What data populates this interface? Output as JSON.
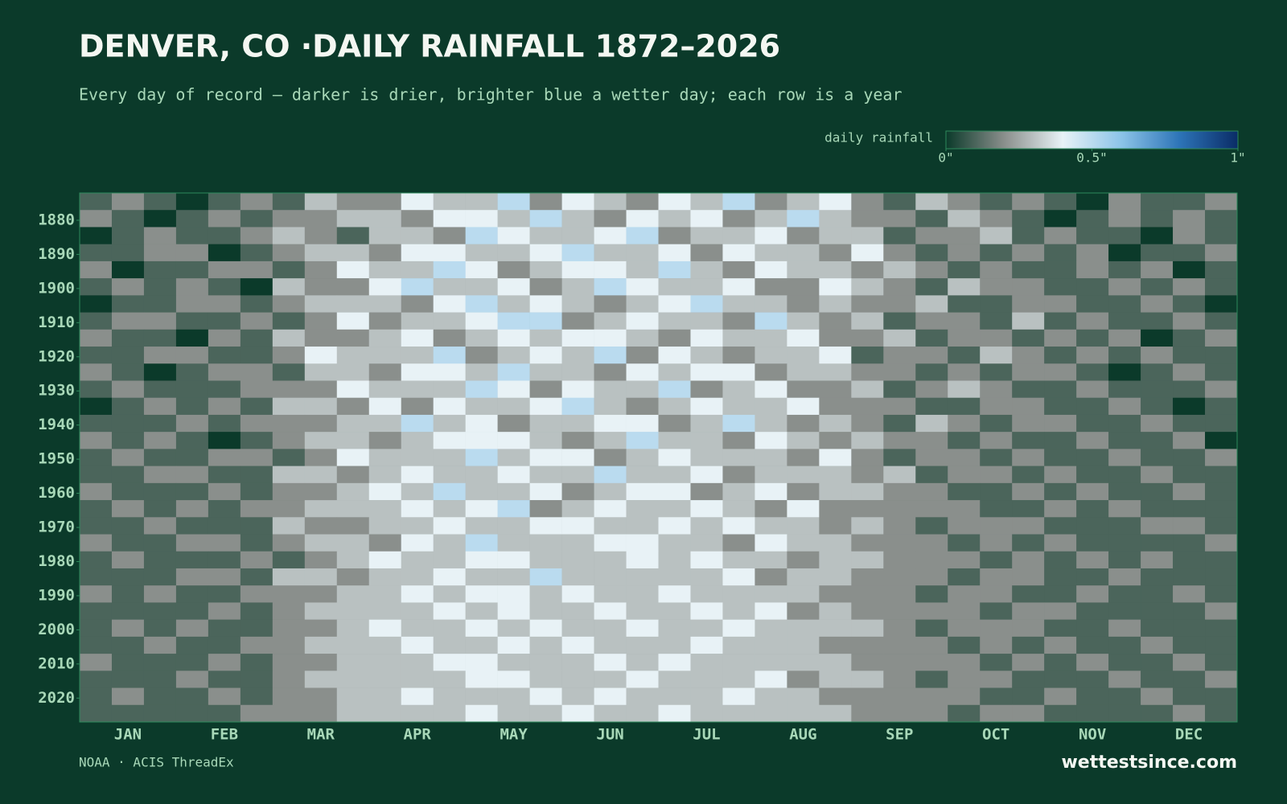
{
  "chart_data": {
    "type": "heatmap",
    "title": "DENVER, CO ·DAILY RAINFALL 1872–2026",
    "subtitle": "Every day of record — darker is drier, brighter blue a wetter day; each row is a year",
    "colorbar": {
      "label": "daily rainfall",
      "zlim": [
        0,
        1
      ],
      "ticks": [
        {
          "value": 0,
          "label": "0\""
        },
        {
          "value": 0.5,
          "label": "0.5\""
        },
        {
          "value": 1,
          "label": "1\""
        }
      ],
      "colors": [
        "#0b3a2a",
        "#8a8f8c",
        "#e8f2f6",
        "#8cc4e8",
        "#2d74b8",
        "#0a2c66"
      ]
    },
    "categories": [
      "JAN",
      "FEB",
      "MAR",
      "APR",
      "MAY",
      "JUN",
      "JUL",
      "AUG",
      "SEP",
      "OCT",
      "NOV",
      "DEC"
    ],
    "y": [
      1872,
      1877,
      1882,
      1887,
      1892,
      1897,
      1902,
      1907,
      1912,
      1917,
      1922,
      1927,
      1932,
      1937,
      1942,
      1947,
      1952,
      1957,
      1962,
      1967,
      1972,
      1977,
      1982,
      1987,
      1992,
      1997,
      2002,
      2007,
      2012,
      2017,
      2022
    ],
    "ylim": [
      1872,
      2027
    ],
    "yticks": [
      1880,
      1890,
      1900,
      1910,
      1920,
      1930,
      1940,
      1950,
      1960,
      1970,
      1980,
      1990,
      2000,
      2010,
      2020
    ],
    "values": [
      [
        0.1,
        0.2,
        0.1,
        0,
        0.1,
        0.2,
        0.1,
        0.3,
        0.2,
        0.2,
        0.4,
        0.3,
        0.3,
        0.5,
        0.2,
        0.4,
        0.3,
        0.2,
        0.4,
        0.3,
        0.5,
        0.2,
        0.3,
        0.4,
        0.2,
        0.1,
        0.3,
        0.2,
        0.1,
        0.2,
        0.1,
        0,
        0.2,
        0.1,
        0.1,
        0.2
      ],
      [
        0.2,
        0.1,
        0,
        0.1,
        0.2,
        0.1,
        0.2,
        0.2,
        0.3,
        0.3,
        0.2,
        0.4,
        0.4,
        0.3,
        0.5,
        0.3,
        0.2,
        0.4,
        0.3,
        0.4,
        0.2,
        0.3,
        0.5,
        0.3,
        0.2,
        0.2,
        0.1,
        0.3,
        0.2,
        0.1,
        0,
        0.1,
        0.2,
        0.1,
        0.2,
        0.1
      ],
      [
        0,
        0.1,
        0.2,
        0.1,
        0.1,
        0.2,
        0.3,
        0.2,
        0.1,
        0.3,
        0.3,
        0.2,
        0.5,
        0.4,
        0.3,
        0.3,
        0.4,
        0.5,
        0.2,
        0.3,
        0.3,
        0.4,
        0.2,
        0.3,
        0.3,
        0.1,
        0.2,
        0.2,
        0.3,
        0.1,
        0.2,
        0.1,
        0.1,
        0,
        0.2,
        0.1
      ],
      [
        0.1,
        0.1,
        0.2,
        0.2,
        0,
        0.1,
        0.2,
        0.3,
        0.3,
        0.2,
        0.4,
        0.4,
        0.3,
        0.3,
        0.4,
        0.5,
        0.3,
        0.3,
        0.4,
        0.2,
        0.4,
        0.3,
        0.3,
        0.2,
        0.4,
        0.2,
        0.1,
        0.2,
        0.1,
        0.2,
        0.1,
        0.2,
        0,
        0.1,
        0.1,
        0.2
      ],
      [
        0.2,
        0,
        0.1,
        0.1,
        0.2,
        0.2,
        0.1,
        0.2,
        0.4,
        0.3,
        0.3,
        0.5,
        0.4,
        0.2,
        0.3,
        0.4,
        0.4,
        0.3,
        0.5,
        0.3,
        0.2,
        0.4,
        0.3,
        0.3,
        0.2,
        0.3,
        0.2,
        0.1,
        0.2,
        0.1,
        0.1,
        0.2,
        0.1,
        0.2,
        0,
        0.1
      ],
      [
        0.1,
        0.2,
        0.1,
        0.2,
        0.1,
        0,
        0.3,
        0.2,
        0.2,
        0.4,
        0.5,
        0.3,
        0.3,
        0.4,
        0.2,
        0.3,
        0.5,
        0.4,
        0.3,
        0.3,
        0.4,
        0.2,
        0.2,
        0.4,
        0.3,
        0.2,
        0.1,
        0.3,
        0.2,
        0.2,
        0.1,
        0.1,
        0.2,
        0.1,
        0.2,
        0.1
      ],
      [
        0,
        0.1,
        0.1,
        0.2,
        0.2,
        0.1,
        0.2,
        0.3,
        0.3,
        0.3,
        0.2,
        0.4,
        0.5,
        0.3,
        0.4,
        0.3,
        0.2,
        0.3,
        0.4,
        0.5,
        0.3,
        0.3,
        0.2,
        0.3,
        0.2,
        0.2,
        0.3,
        0.1,
        0.1,
        0.2,
        0.2,
        0.1,
        0.1,
        0.2,
        0.1,
        0
      ],
      [
        0.1,
        0.2,
        0.2,
        0.1,
        0.1,
        0.2,
        0.1,
        0.2,
        0.4,
        0.2,
        0.3,
        0.3,
        0.4,
        0.5,
        0.5,
        0.2,
        0.3,
        0.4,
        0.3,
        0.3,
        0.2,
        0.5,
        0.3,
        0.2,
        0.3,
        0.1,
        0.2,
        0.2,
        0.1,
        0.3,
        0.1,
        0.2,
        0.1,
        0.1,
        0.2,
        0.1
      ],
      [
        0.2,
        0.1,
        0.1,
        0,
        0.2,
        0.1,
        0.3,
        0.2,
        0.2,
        0.3,
        0.4,
        0.2,
        0.3,
        0.4,
        0.3,
        0.4,
        0.4,
        0.3,
        0.2,
        0.4,
        0.3,
        0.3,
        0.4,
        0.2,
        0.2,
        0.3,
        0.1,
        0.2,
        0.2,
        0.1,
        0.2,
        0.1,
        0.2,
        0,
        0.1,
        0.2
      ],
      [
        0.1,
        0.1,
        0.2,
        0.2,
        0.1,
        0.1,
        0.2,
        0.4,
        0.3,
        0.3,
        0.3,
        0.5,
        0.2,
        0.3,
        0.4,
        0.3,
        0.5,
        0.2,
        0.4,
        0.3,
        0.2,
        0.3,
        0.3,
        0.4,
        0.1,
        0.2,
        0.2,
        0.1,
        0.3,
        0.2,
        0.1,
        0.2,
        0.1,
        0.2,
        0.1,
        0.1
      ],
      [
        0.2,
        0.1,
        0,
        0.1,
        0.2,
        0.2,
        0.1,
        0.3,
        0.3,
        0.2,
        0.4,
        0.4,
        0.3,
        0.5,
        0.3,
        0.3,
        0.2,
        0.4,
        0.3,
        0.4,
        0.4,
        0.2,
        0.3,
        0.3,
        0.2,
        0.2,
        0.1,
        0.2,
        0.1,
        0.2,
        0.2,
        0.1,
        0,
        0.1,
        0.2,
        0.1
      ],
      [
        0.1,
        0.2,
        0.1,
        0.1,
        0.1,
        0.2,
        0.2,
        0.2,
        0.4,
        0.3,
        0.3,
        0.3,
        0.5,
        0.4,
        0.2,
        0.4,
        0.3,
        0.3,
        0.5,
        0.2,
        0.3,
        0.4,
        0.2,
        0.2,
        0.3,
        0.1,
        0.2,
        0.3,
        0.2,
        0.1,
        0.1,
        0.2,
        0.1,
        0.1,
        0.1,
        0.2
      ],
      [
        0,
        0.1,
        0.2,
        0.1,
        0.2,
        0.1,
        0.3,
        0.3,
        0.2,
        0.4,
        0.2,
        0.4,
        0.3,
        0.3,
        0.4,
        0.5,
        0.3,
        0.2,
        0.3,
        0.4,
        0.3,
        0.3,
        0.4,
        0.2,
        0.2,
        0.2,
        0.1,
        0.1,
        0.2,
        0.2,
        0.1,
        0.1,
        0.2,
        0.1,
        0,
        0.1
      ],
      [
        0.1,
        0.1,
        0.1,
        0.2,
        0.1,
        0.2,
        0.2,
        0.2,
        0.3,
        0.3,
        0.5,
        0.3,
        0.4,
        0.2,
        0.3,
        0.3,
        0.4,
        0.4,
        0.2,
        0.3,
        0.5,
        0.3,
        0.2,
        0.3,
        0.2,
        0.1,
        0.3,
        0.2,
        0.1,
        0.2,
        0.2,
        0.1,
        0.1,
        0.2,
        0.1,
        0.1
      ],
      [
        0.2,
        0.1,
        0.2,
        0.1,
        0,
        0.1,
        0.2,
        0.3,
        0.3,
        0.2,
        0.3,
        0.4,
        0.4,
        0.4,
        0.3,
        0.2,
        0.3,
        0.5,
        0.3,
        0.3,
        0.2,
        0.4,
        0.3,
        0.2,
        0.3,
        0.2,
        0.2,
        0.1,
        0.2,
        0.1,
        0.1,
        0.2,
        0.1,
        0.1,
        0.2,
        0
      ],
      [
        0.1,
        0.2,
        0.1,
        0.1,
        0.2,
        0.2,
        0.1,
        0.2,
        0.4,
        0.3,
        0.3,
        0.3,
        0.5,
        0.3,
        0.4,
        0.4,
        0.2,
        0.3,
        0.4,
        0.3,
        0.3,
        0.3,
        0.2,
        0.4,
        0.2,
        0.1,
        0.2,
        0.2,
        0.1,
        0.2,
        0.1,
        0.1,
        0.2,
        0.1,
        0.1,
        0.2
      ],
      [
        0.1,
        0.1,
        0.2,
        0.2,
        0.1,
        0.1,
        0.3,
        0.3,
        0.2,
        0.3,
        0.4,
        0.3,
        0.3,
        0.4,
        0.3,
        0.3,
        0.5,
        0.3,
        0.3,
        0.4,
        0.2,
        0.3,
        0.3,
        0.3,
        0.2,
        0.3,
        0.1,
        0.2,
        0.2,
        0.1,
        0.2,
        0.1,
        0.1,
        0.2,
        0.1,
        0.1
      ],
      [
        0.2,
        0.1,
        0.1,
        0.1,
        0.2,
        0.1,
        0.2,
        0.2,
        0.3,
        0.4,
        0.3,
        0.5,
        0.3,
        0.3,
        0.4,
        0.2,
        0.3,
        0.4,
        0.4,
        0.2,
        0.3,
        0.4,
        0.2,
        0.3,
        0.3,
        0.2,
        0.2,
        0.1,
        0.1,
        0.2,
        0.1,
        0.2,
        0.1,
        0.1,
        0.2,
        0.1
      ],
      [
        0.1,
        0.2,
        0.1,
        0.2,
        0.1,
        0.2,
        0.2,
        0.3,
        0.3,
        0.3,
        0.4,
        0.3,
        0.4,
        0.5,
        0.2,
        0.3,
        0.4,
        0.3,
        0.3,
        0.4,
        0.3,
        0.2,
        0.4,
        0.2,
        0.2,
        0.2,
        0.2,
        0.2,
        0.1,
        0.1,
        0.2,
        0.1,
        0.2,
        0.1,
        0.1,
        0.1
      ],
      [
        0.1,
        0.1,
        0.2,
        0.1,
        0.1,
        0.1,
        0.3,
        0.2,
        0.2,
        0.3,
        0.3,
        0.4,
        0.3,
        0.3,
        0.4,
        0.4,
        0.3,
        0.3,
        0.4,
        0.3,
        0.4,
        0.3,
        0.3,
        0.2,
        0.3,
        0.2,
        0.1,
        0.2,
        0.2,
        0.2,
        0.1,
        0.1,
        0.1,
        0.2,
        0.2,
        0.1
      ],
      [
        0.2,
        0.1,
        0.1,
        0.2,
        0.2,
        0.1,
        0.2,
        0.3,
        0.3,
        0.2,
        0.4,
        0.3,
        0.5,
        0.3,
        0.3,
        0.3,
        0.4,
        0.4,
        0.3,
        0.3,
        0.2,
        0.4,
        0.3,
        0.3,
        0.2,
        0.2,
        0.2,
        0.1,
        0.2,
        0.1,
        0.2,
        0.1,
        0.1,
        0.1,
        0.1,
        0.2
      ],
      [
        0.1,
        0.2,
        0.1,
        0.1,
        0.1,
        0.2,
        0.1,
        0.2,
        0.3,
        0.4,
        0.3,
        0.3,
        0.4,
        0.4,
        0.3,
        0.3,
        0.3,
        0.4,
        0.3,
        0.4,
        0.3,
        0.3,
        0.2,
        0.3,
        0.3,
        0.2,
        0.2,
        0.2,
        0.1,
        0.2,
        0.1,
        0.2,
        0.1,
        0.2,
        0.1,
        0.1
      ],
      [
        0.1,
        0.1,
        0.1,
        0.2,
        0.2,
        0.1,
        0.3,
        0.3,
        0.2,
        0.3,
        0.3,
        0.4,
        0.3,
        0.3,
        0.5,
        0.3,
        0.3,
        0.3,
        0.3,
        0.3,
        0.4,
        0.2,
        0.3,
        0.3,
        0.2,
        0.2,
        0.2,
        0.1,
        0.2,
        0.2,
        0.1,
        0.1,
        0.2,
        0.1,
        0.1,
        0.1
      ],
      [
        0.2,
        0.1,
        0.2,
        0.1,
        0.1,
        0.2,
        0.2,
        0.2,
        0.3,
        0.3,
        0.4,
        0.3,
        0.4,
        0.4,
        0.3,
        0.4,
        0.3,
        0.3,
        0.4,
        0.3,
        0.3,
        0.3,
        0.3,
        0.2,
        0.2,
        0.2,
        0.1,
        0.2,
        0.2,
        0.1,
        0.1,
        0.2,
        0.1,
        0.1,
        0.2,
        0.1
      ],
      [
        0.1,
        0.1,
        0.1,
        0.1,
        0.2,
        0.1,
        0.2,
        0.3,
        0.3,
        0.3,
        0.3,
        0.4,
        0.3,
        0.4,
        0.3,
        0.3,
        0.4,
        0.3,
        0.3,
        0.4,
        0.3,
        0.4,
        0.2,
        0.3,
        0.2,
        0.2,
        0.2,
        0.2,
        0.1,
        0.2,
        0.2,
        0.1,
        0.1,
        0.1,
        0.1,
        0.2
      ],
      [
        0.1,
        0.2,
        0.1,
        0.2,
        0.1,
        0.1,
        0.2,
        0.2,
        0.3,
        0.4,
        0.3,
        0.3,
        0.4,
        0.3,
        0.4,
        0.3,
        0.3,
        0.4,
        0.3,
        0.3,
        0.4,
        0.3,
        0.3,
        0.3,
        0.3,
        0.2,
        0.1,
        0.2,
        0.2,
        0.2,
        0.1,
        0.1,
        0.2,
        0.1,
        0.1,
        0.1
      ],
      [
        0.1,
        0.1,
        0.2,
        0.1,
        0.1,
        0.2,
        0.2,
        0.3,
        0.3,
        0.3,
        0.4,
        0.3,
        0.3,
        0.4,
        0.3,
        0.4,
        0.3,
        0.3,
        0.3,
        0.4,
        0.3,
        0.3,
        0.3,
        0.2,
        0.2,
        0.2,
        0.2,
        0.1,
        0.2,
        0.1,
        0.2,
        0.1,
        0.1,
        0.2,
        0.1,
        0.1
      ],
      [
        0.2,
        0.1,
        0.1,
        0.1,
        0.2,
        0.1,
        0.2,
        0.2,
        0.3,
        0.3,
        0.3,
        0.4,
        0.4,
        0.3,
        0.3,
        0.3,
        0.4,
        0.3,
        0.4,
        0.3,
        0.3,
        0.3,
        0.3,
        0.3,
        0.2,
        0.2,
        0.2,
        0.2,
        0.1,
        0.2,
        0.1,
        0.2,
        0.1,
        0.1,
        0.2,
        0.1
      ],
      [
        0.1,
        0.1,
        0.1,
        0.2,
        0.1,
        0.1,
        0.2,
        0.3,
        0.3,
        0.3,
        0.3,
        0.3,
        0.4,
        0.4,
        0.3,
        0.3,
        0.3,
        0.4,
        0.3,
        0.3,
        0.3,
        0.4,
        0.2,
        0.3,
        0.3,
        0.2,
        0.1,
        0.2,
        0.2,
        0.1,
        0.1,
        0.1,
        0.2,
        0.1,
        0.1,
        0.2
      ],
      [
        0.1,
        0.2,
        0.1,
        0.1,
        0.2,
        0.1,
        0.2,
        0.2,
        0.3,
        0.3,
        0.4,
        0.3,
        0.3,
        0.3,
        0.4,
        0.3,
        0.4,
        0.3,
        0.3,
        0.3,
        0.4,
        0.3,
        0.3,
        0.2,
        0.2,
        0.2,
        0.2,
        0.2,
        0.1,
        0.1,
        0.2,
        0.1,
        0.1,
        0.2,
        0.1,
        0.1
      ],
      [
        0.1,
        0.1,
        0.1,
        0.1,
        0.1,
        0.2,
        0.2,
        0.2,
        0.3,
        0.3,
        0.3,
        0.3,
        0.4,
        0.3,
        0.3,
        0.4,
        0.3,
        0.3,
        0.4,
        0.3,
        0.3,
        0.3,
        0.3,
        0.3,
        0.2,
        0.2,
        0.2,
        0.1,
        0.2,
        0.2,
        0.1,
        0.1,
        0.1,
        0.1,
        0.2,
        0.1
      ]
    ],
    "source": "NOAA · ACIS ThreadEx",
    "brand": "wettestsince.com"
  }
}
